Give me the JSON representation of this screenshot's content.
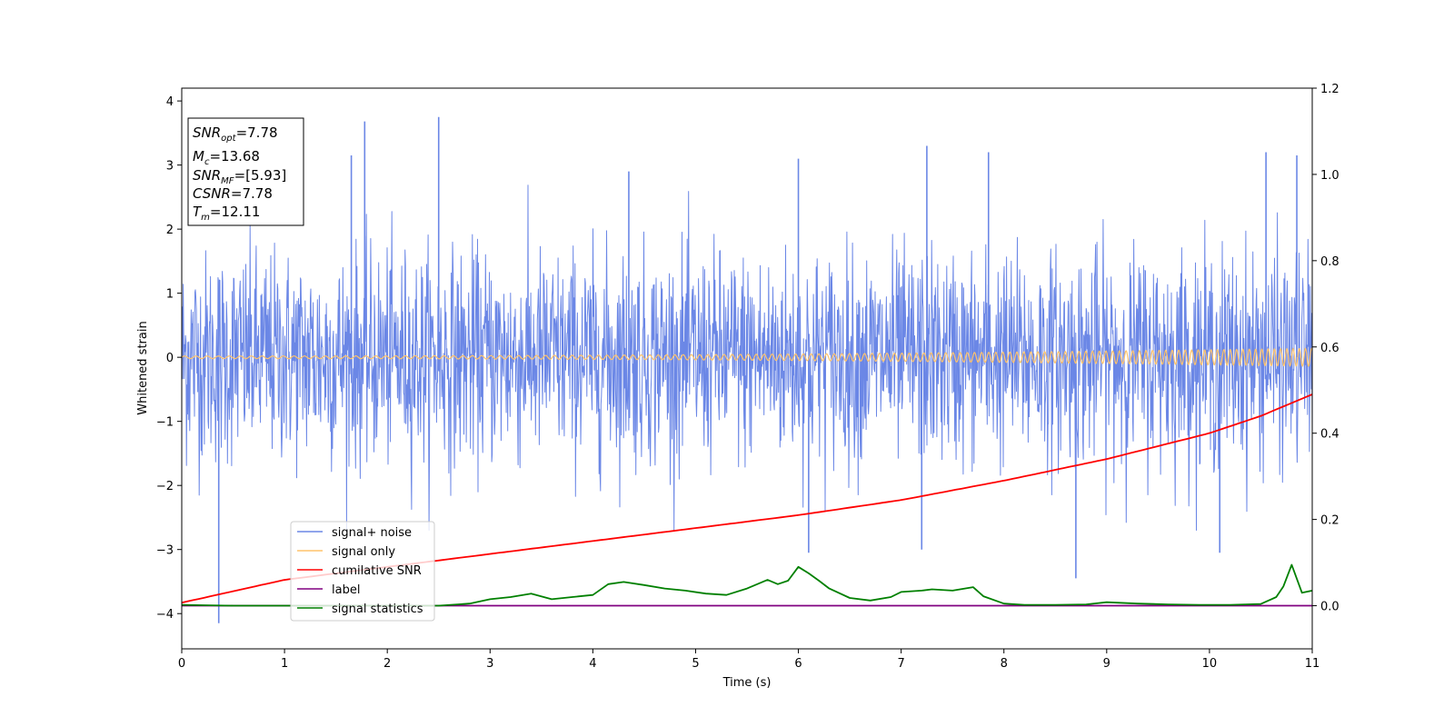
{
  "chart_data": {
    "type": "line",
    "xlabel": "Time (s)",
    "ylabel": "Whitened strain",
    "xlim": [
      0,
      11
    ],
    "ylim_left": [
      -4.55,
      4.2
    ],
    "ylim_right": [
      -0.1,
      1.2
    ],
    "x_ticks": [
      "0",
      "1",
      "2",
      "3",
      "4",
      "5",
      "6",
      "7",
      "8",
      "9",
      "10",
      "11"
    ],
    "y_ticks_left": [
      "4",
      "3",
      "2",
      "1",
      "0",
      "−1",
      "−2",
      "−3",
      "−4"
    ],
    "y_ticks_left_values": [
      4,
      3,
      2,
      1,
      0,
      -1,
      -2,
      -3,
      -4
    ],
    "y_ticks_right": [
      "1.2",
      "1.0",
      "0.8",
      "0.6",
      "0.4",
      "0.2",
      "0.0"
    ],
    "y_ticks_right_values": [
      1.2,
      1.0,
      0.8,
      0.6,
      0.4,
      0.2,
      0.0
    ],
    "grid": false,
    "legend_position": "lower-left",
    "colors": {
      "noise": "#6b87e6",
      "signal": "#ffc36b",
      "cumulative": "#ff0000",
      "label": "#800080",
      "statistics": "#008000"
    },
    "series": [
      {
        "name": "signal+ noise",
        "axis": "left",
        "description_range": [
          -4.15,
          3.75
        ],
        "spikes": [
          [
            0.36,
            -4.15
          ],
          [
            1.78,
            3.68
          ],
          [
            2.5,
            3.75
          ],
          [
            1.65,
            3.15
          ],
          [
            4.35,
            2.9
          ],
          [
            6.0,
            3.1
          ],
          [
            7.25,
            3.3
          ],
          [
            7.85,
            3.2
          ],
          [
            10.55,
            3.2
          ],
          [
            10.85,
            3.15
          ],
          [
            8.7,
            -3.45
          ],
          [
            6.1,
            -3.05
          ],
          [
            10.1,
            -3.05
          ],
          [
            7.2,
            -3.0
          ]
        ]
      },
      {
        "name": "signal only",
        "axis": "left",
        "amplitude_start": 0.02,
        "amplitude_end": 0.14
      },
      {
        "name": "cumilative SNR",
        "axis": "right",
        "x": [
          0,
          1,
          2,
          3,
          4,
          5,
          6,
          7,
          8,
          9,
          10,
          10.5,
          11
        ],
        "values": [
          0.007,
          0.06,
          0.09,
          0.12,
          0.15,
          0.18,
          0.21,
          0.245,
          0.29,
          0.34,
          0.4,
          0.44,
          0.49
        ]
      },
      {
        "name": "label",
        "axis": "right",
        "x": [
          0,
          11
        ],
        "values": [
          0.0,
          0.0
        ]
      },
      {
        "name": "signal statistics",
        "axis": "right",
        "x": [
          0,
          0.5,
          1,
          1.5,
          2,
          2.5,
          2.8,
          3.0,
          3.2,
          3.4,
          3.6,
          3.8,
          4.0,
          4.15,
          4.3,
          4.5,
          4.7,
          4.9,
          5.1,
          5.3,
          5.5,
          5.7,
          5.8,
          5.9,
          6.0,
          6.1,
          6.2,
          6.3,
          6.5,
          6.7,
          6.9,
          7.0,
          7.2,
          7.3,
          7.5,
          7.7,
          7.8,
          8.0,
          8.2,
          8.5,
          8.8,
          9.0,
          9.3,
          9.6,
          9.9,
          10.2,
          10.5,
          10.65,
          10.72,
          10.8,
          10.9,
          11.0
        ],
        "values": [
          0.002,
          0.0,
          0.0,
          0.0,
          0.0,
          0.0,
          0.005,
          0.015,
          0.02,
          0.028,
          0.015,
          0.02,
          0.025,
          0.05,
          0.055,
          0.048,
          0.04,
          0.035,
          0.028,
          0.025,
          0.04,
          0.06,
          0.05,
          0.058,
          0.09,
          0.075,
          0.058,
          0.04,
          0.018,
          0.012,
          0.02,
          0.032,
          0.035,
          0.038,
          0.035,
          0.043,
          0.022,
          0.005,
          0.002,
          0.002,
          0.003,
          0.008,
          0.005,
          0.003,
          0.002,
          0.002,
          0.004,
          0.02,
          0.045,
          0.095,
          0.03,
          0.035
        ]
      }
    ]
  },
  "info_box": {
    "snr_opt_main": "SNR",
    "snr_opt_sub": "opt",
    "snr_opt_value": "=7.78",
    "mc_main": "M",
    "mc_sub": "c",
    "mc_value": "=13.68",
    "snr_mf_main": "SNR",
    "snr_mf_sub": "MF",
    "snr_mf_value": "=[5.93]",
    "csnr_main": "CSNR",
    "csnr_value": "=7.78",
    "tm_main": "T",
    "tm_sub": "m",
    "tm_value": "=12.11"
  },
  "legend": {
    "items": [
      {
        "label": "signal+ noise",
        "color": "#6b87e6"
      },
      {
        "label": "signal only",
        "color": "#ffc36b"
      },
      {
        "label": "cumilative SNR",
        "color": "#ff0000"
      },
      {
        "label": "label",
        "color": "#800080"
      },
      {
        "label": "signal statistics",
        "color": "#008000"
      }
    ]
  }
}
